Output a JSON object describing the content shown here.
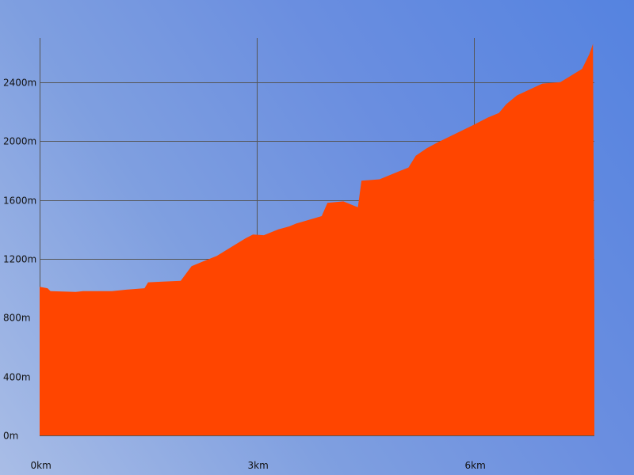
{
  "chart_data": {
    "type": "area",
    "title": "",
    "xlabel": "",
    "ylabel": "",
    "x_unit": "km",
    "y_unit": "m",
    "xlim": [
      0,
      7.67
    ],
    "ylim": [
      0,
      2700
    ],
    "x_ticks": [
      {
        "value": 0,
        "label": "0km"
      },
      {
        "value": 3,
        "label": "3km"
      },
      {
        "value": 6,
        "label": "6km"
      }
    ],
    "y_ticks": [
      {
        "value": 0,
        "label": "0m"
      },
      {
        "value": 400,
        "label": "400m"
      },
      {
        "value": 800,
        "label": "800m"
      },
      {
        "value": 1200,
        "label": "1200m"
      },
      {
        "value": 1600,
        "label": "1600m"
      },
      {
        "value": 2000,
        "label": "2000m"
      },
      {
        "value": 2400,
        "label": "2400m"
      }
    ],
    "grid": true,
    "colors": {
      "fill": "#ff4500",
      "grid": "#555555",
      "text": "#111111"
    },
    "series": [
      {
        "x": [
          0,
          0.11,
          0.15,
          0.5,
          0.6,
          1.0,
          1.2,
          1.45,
          1.5,
          1.7,
          1.95,
          2.1,
          2.3,
          2.45,
          2.65,
          2.85,
          2.95,
          3.1,
          3.3,
          3.45,
          3.55,
          3.9,
          3.98,
          4.2,
          4.35,
          4.4,
          4.45,
          4.7,
          5.0,
          5.1,
          5.2,
          5.35,
          5.5,
          6.0,
          6.2,
          6.35,
          6.45,
          6.6,
          6.95,
          7.2,
          7.3,
          7.5,
          7.6,
          7.65,
          7.66,
          7.67
        ],
        "y": [
          1010,
          1000,
          980,
          975,
          980,
          980,
          990,
          1000,
          1040,
          1045,
          1050,
          1150,
          1190,
          1220,
          1280,
          1340,
          1365,
          1360,
          1400,
          1420,
          1440,
          1490,
          1580,
          1590,
          1560,
          1550,
          1730,
          1740,
          1800,
          1820,
          1900,
          1950,
          1990,
          2110,
          2160,
          2190,
          2250,
          2310,
          2390,
          2400,
          2430,
          2490,
          2590,
          2660,
          1800,
          900
        ]
      }
    ]
  }
}
